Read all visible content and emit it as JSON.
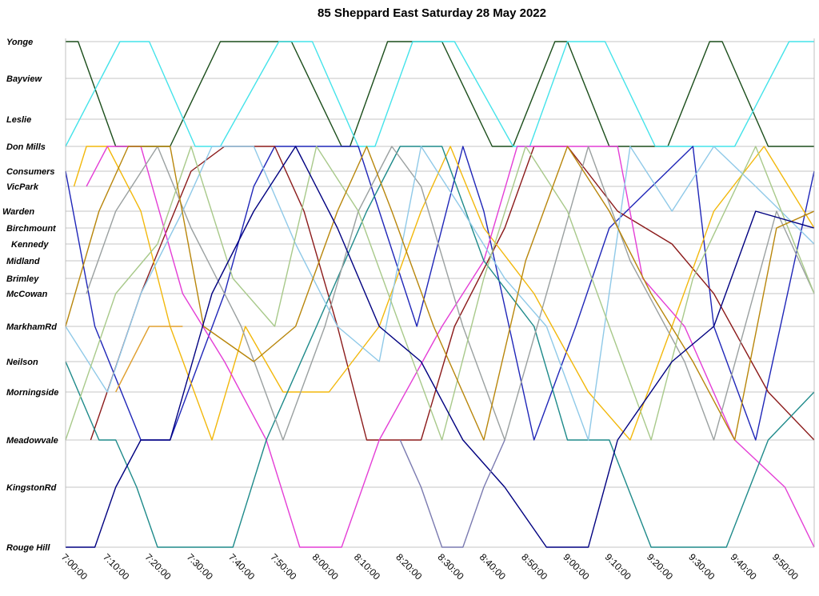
{
  "chart_data": {
    "type": "line",
    "title": "85 Sheppard East Saturday 28 May 2022",
    "xlabel": "",
    "ylabel": "",
    "x_ticks": [
      "7:00:00",
      "7:10:00",
      "7:20:00",
      "7:30:00",
      "7:40:00",
      "7:50:00",
      "8:00:00",
      "8:10:00",
      "8:20:00",
      "8:30:00",
      "8:40:00",
      "8:50:00",
      "9:00:00",
      "9:10:00",
      "9:20:00",
      "9:30:00",
      "9:40:00",
      "9:50:00"
    ],
    "xlim": [
      "7:00:00",
      "9:59:00"
    ],
    "stops": [
      "Yonge",
      "Bayview",
      "Leslie",
      "Don Mills",
      "Consumers",
      "VicPark",
      "Warden",
      "Birchmount",
      "Kennedy",
      "Midland",
      "Brimley",
      "McCowan",
      "MarkhamRd",
      "Neilson",
      "Morningside",
      "Meadowvale",
      "KingstonRd",
      "Rouge Hill"
    ],
    "grid": true,
    "legend": "none",
    "series": [
      {
        "color": "#1a4d1a",
        "points": [
          [
            "7:00",
            "Yonge"
          ],
          [
            "7:03",
            "Yonge"
          ],
          [
            "7:12",
            "Don Mills"
          ],
          [
            "7:25",
            "Don Mills"
          ],
          [
            "7:37",
            "Yonge"
          ],
          [
            "7:54",
            "Yonge"
          ],
          [
            "8:06",
            "Don Mills"
          ],
          [
            "8:08",
            "Don Mills"
          ],
          [
            "8:17",
            "Yonge"
          ],
          [
            "8:30",
            "Yonge"
          ],
          [
            "8:42",
            "Don Mills"
          ],
          [
            "8:47",
            "Don Mills"
          ],
          [
            "8:57",
            "Yonge"
          ],
          [
            "9:00",
            "Yonge"
          ],
          [
            "9:10",
            "Don Mills"
          ],
          [
            "9:24",
            "Don Mills"
          ],
          [
            "9:34",
            "Yonge"
          ],
          [
            "9:37",
            "Yonge"
          ],
          [
            "9:48",
            "Don Mills"
          ],
          [
            "9:59",
            "Don Mills"
          ]
        ]
      },
      {
        "color": "#44e3ea",
        "points": [
          [
            "7:00",
            "Don Mills"
          ],
          [
            "7:13",
            "Yonge"
          ],
          [
            "7:20",
            "Yonge"
          ],
          [
            "7:31",
            "Don Mills"
          ],
          [
            "7:37",
            "Don Mills"
          ],
          [
            "7:51",
            "Yonge"
          ],
          [
            "7:59",
            "Yonge"
          ],
          [
            "8:10",
            "Don Mills"
          ],
          [
            "8:14",
            "Don Mills"
          ],
          [
            "8:23",
            "Yonge"
          ],
          [
            "8:33",
            "Yonge"
          ],
          [
            "8:47",
            "Don Mills"
          ],
          [
            "8:51",
            "Don Mills"
          ],
          [
            "9:00",
            "Yonge"
          ],
          [
            "9:09",
            "Yonge"
          ],
          [
            "9:21",
            "Don Mills"
          ],
          [
            "9:40",
            "Don Mills"
          ],
          [
            "9:53",
            "Yonge"
          ],
          [
            "9:59",
            "Yonge"
          ]
        ]
      },
      {
        "color": "#1f26b8",
        "points": [
          [
            "7:00",
            "Consumers"
          ],
          [
            "7:07",
            "MarkhamRd"
          ],
          [
            "7:18",
            "Meadowvale"
          ],
          [
            "7:25",
            "Meadowvale"
          ],
          [
            "7:38",
            "McCowan"
          ],
          [
            "7:45",
            "VicPark"
          ],
          [
            "7:50",
            "Don Mills"
          ],
          [
            "8:10",
            "Don Mills"
          ],
          [
            "8:15",
            "Warden"
          ],
          [
            "8:24",
            "MarkhamRd"
          ],
          [
            "8:35",
            "Don Mills"
          ],
          [
            "8:40",
            "Warden"
          ],
          [
            "8:52",
            "Meadowvale"
          ],
          [
            "9:02",
            "MarkhamRd"
          ],
          [
            "9:10",
            "Birchmount"
          ],
          [
            "9:30",
            "Don Mills"
          ],
          [
            "9:35",
            "MarkhamRd"
          ],
          [
            "9:45",
            "Meadowvale"
          ],
          [
            "9:59",
            "Consumers"
          ]
        ]
      },
      {
        "color": "#8b1a1a",
        "points": [
          [
            "7:06",
            "Meadowvale"
          ],
          [
            "7:18",
            "McCowan"
          ],
          [
            "7:30",
            "Consumers"
          ],
          [
            "7:38",
            "Don Mills"
          ],
          [
            "7:50",
            "Don Mills"
          ],
          [
            "7:57",
            "Warden"
          ],
          [
            "8:05",
            "MarkhamRd"
          ],
          [
            "8:12",
            "Meadowvale"
          ],
          [
            "8:25",
            "Meadowvale"
          ],
          [
            "8:33",
            "MarkhamRd"
          ],
          [
            "8:45",
            "Birchmount"
          ],
          [
            "8:52",
            "Don Mills"
          ],
          [
            "9:00",
            "Don Mills"
          ],
          [
            "9:12",
            "Warden"
          ],
          [
            "9:25",
            "Kennedy"
          ],
          [
            "9:35",
            "McCowan"
          ],
          [
            "9:48",
            "Morningside"
          ],
          [
            "9:59",
            "Meadowvale"
          ]
        ]
      },
      {
        "color": "#f2b80c",
        "points": [
          [
            "7:02",
            "VicPark"
          ],
          [
            "7:05",
            "Don Mills"
          ],
          [
            "7:10",
            "Don Mills"
          ],
          [
            "7:18",
            "Warden"
          ],
          [
            "7:25",
            "MarkhamRd"
          ],
          [
            "7:35",
            "Meadowvale"
          ],
          [
            "7:43",
            "MarkhamRd"
          ],
          [
            "7:52",
            "Morningside"
          ],
          [
            "8:03",
            "Morningside"
          ],
          [
            "8:15",
            "MarkhamRd"
          ],
          [
            "8:25",
            "Warden"
          ],
          [
            "8:32",
            "Don Mills"
          ],
          [
            "8:40",
            "Birchmount"
          ],
          [
            "8:52",
            "McCowan"
          ],
          [
            "9:05",
            "Morningside"
          ],
          [
            "9:15",
            "Meadowvale"
          ],
          [
            "9:25",
            "MarkhamRd"
          ],
          [
            "9:35",
            "Warden"
          ],
          [
            "9:47",
            "Don Mills"
          ],
          [
            "9:59",
            "Birchmount"
          ]
        ]
      },
      {
        "color": "#e43ed6",
        "points": [
          [
            "7:05",
            "VicPark"
          ],
          [
            "7:10",
            "Don Mills"
          ],
          [
            "7:18",
            "Don Mills"
          ],
          [
            "7:28",
            "McCowan"
          ],
          [
            "7:38",
            "Neilson"
          ],
          [
            "7:48",
            "Meadowvale"
          ],
          [
            "7:56",
            "Rouge Hill"
          ],
          [
            "8:06",
            "Rouge Hill"
          ],
          [
            "8:15",
            "Meadowvale"
          ],
          [
            "8:30",
            "MarkhamRd"
          ],
          [
            "8:40",
            "Midland"
          ],
          [
            "8:48",
            "Don Mills"
          ],
          [
            "9:12",
            "Don Mills"
          ],
          [
            "9:18",
            "Brimley"
          ],
          [
            "9:28",
            "MarkhamRd"
          ],
          [
            "9:40",
            "Meadowvale"
          ],
          [
            "9:52",
            "KingstonRd"
          ],
          [
            "9:59",
            "Rouge Hill"
          ]
        ]
      },
      {
        "color": "#1e8a8a",
        "points": [
          [
            "7:00",
            "Neilson"
          ],
          [
            "7:08",
            "Meadowvale"
          ],
          [
            "7:12",
            "Meadowvale"
          ],
          [
            "7:17",
            "KingstonRd"
          ],
          [
            "7:22",
            "Rouge Hill"
          ],
          [
            "7:40",
            "Rouge Hill"
          ],
          [
            "7:48",
            "Meadowvale"
          ],
          [
            "8:00",
            "MarkhamRd"
          ],
          [
            "8:12",
            "Warden"
          ],
          [
            "8:20",
            "Don Mills"
          ],
          [
            "8:30",
            "Don Mills"
          ],
          [
            "8:40",
            "Midland"
          ],
          [
            "8:52",
            "MarkhamRd"
          ],
          [
            "9:00",
            "Meadowvale"
          ],
          [
            "9:10",
            "Meadowvale"
          ],
          [
            "9:20",
            "Rouge Hill"
          ],
          [
            "9:38",
            "Rouge Hill"
          ],
          [
            "9:48",
            "Meadowvale"
          ],
          [
            "9:59",
            "Morningside"
          ]
        ]
      },
      {
        "color": "#9aa0a0",
        "points": [
          [
            "7:05",
            "McCowan"
          ],
          [
            "7:12",
            "Warden"
          ],
          [
            "7:22",
            "Don Mills"
          ],
          [
            "7:30",
            "Birchmount"
          ],
          [
            "7:42",
            "MarkhamRd"
          ],
          [
            "7:52",
            "Meadowvale"
          ],
          [
            "8:02",
            "MarkhamRd"
          ],
          [
            "8:10",
            "Warden"
          ],
          [
            "8:18",
            "Don Mills"
          ],
          [
            "8:25",
            "VicPark"
          ],
          [
            "8:35",
            "MarkhamRd"
          ],
          [
            "8:45",
            "Meadowvale"
          ],
          [
            "8:55",
            "McCowan"
          ],
          [
            "9:05",
            "Don Mills"
          ],
          [
            "9:15",
            "Midland"
          ],
          [
            "9:28",
            "Neilson"
          ],
          [
            "9:35",
            "Meadowvale"
          ],
          [
            "9:50",
            "Warden"
          ],
          [
            "9:59",
            "McCowan"
          ]
        ]
      },
      {
        "color": "#8fc9e8",
        "points": [
          [
            "7:00",
            "MarkhamRd"
          ],
          [
            "7:10",
            "Morningside"
          ],
          [
            "7:18",
            "McCowan"
          ],
          [
            "7:28",
            "Warden"
          ],
          [
            "7:35",
            "Don Mills"
          ],
          [
            "7:45",
            "Don Mills"
          ],
          [
            "7:55",
            "Kennedy"
          ],
          [
            "8:05",
            "MarkhamRd"
          ],
          [
            "8:15",
            "Neilson"
          ],
          [
            "8:25",
            "Don Mills"
          ],
          [
            "8:35",
            "Warden"
          ],
          [
            "8:45",
            "Brimley"
          ],
          [
            "8:55",
            "MarkhamRd"
          ],
          [
            "9:05",
            "Meadowvale"
          ],
          [
            "9:15",
            "Don Mills"
          ],
          [
            "9:25",
            "Warden"
          ],
          [
            "9:35",
            "Don Mills"
          ],
          [
            "9:45",
            "VicPark"
          ],
          [
            "9:59",
            "Kennedy"
          ]
        ]
      },
      {
        "color": "#a8c98a",
        "points": [
          [
            "7:00",
            "Meadowvale"
          ],
          [
            "7:12",
            "McCowan"
          ],
          [
            "7:22",
            "Kennedy"
          ],
          [
            "7:30",
            "Don Mills"
          ],
          [
            "7:40",
            "Brimley"
          ],
          [
            "7:50",
            "MarkhamRd"
          ],
          [
            "8:00",
            "Don Mills"
          ],
          [
            "8:10",
            "Warden"
          ],
          [
            "8:20",
            "MarkhamRd"
          ],
          [
            "8:30",
            "Meadowvale"
          ],
          [
            "8:40",
            "Brimley"
          ],
          [
            "8:50",
            "Don Mills"
          ],
          [
            "9:00",
            "Warden"
          ],
          [
            "9:10",
            "MarkhamRd"
          ],
          [
            "9:20",
            "Meadowvale"
          ],
          [
            "9:30",
            "Brimley"
          ],
          [
            "9:45",
            "Don Mills"
          ],
          [
            "9:59",
            "McCowan"
          ]
        ]
      },
      {
        "color": "#b8860b",
        "points": [
          [
            "7:00",
            "MarkhamRd"
          ],
          [
            "7:08",
            "Warden"
          ],
          [
            "7:15",
            "Don Mills"
          ],
          [
            "7:25",
            "Don Mills"
          ],
          [
            "7:33",
            "MarkhamRd"
          ],
          [
            "7:45",
            "Neilson"
          ],
          [
            "7:55",
            "MarkhamRd"
          ],
          [
            "8:05",
            "Warden"
          ],
          [
            "8:12",
            "Don Mills"
          ],
          [
            "8:18",
            "Warden"
          ],
          [
            "8:28",
            "MarkhamRd"
          ],
          [
            "8:40",
            "Meadowvale"
          ],
          [
            "8:50",
            "Midland"
          ],
          [
            "9:00",
            "Don Mills"
          ],
          [
            "9:10",
            "Warden"
          ],
          [
            "9:20",
            "McCowan"
          ],
          [
            "9:30",
            "Neilson"
          ],
          [
            "9:40",
            "Meadowvale"
          ],
          [
            "9:50",
            "Birchmount"
          ],
          [
            "9:59",
            "Warden"
          ]
        ]
      },
      {
        "color": "#000080",
        "points": [
          [
            "7:00",
            "Rouge Hill"
          ],
          [
            "7:07",
            "Rouge Hill"
          ],
          [
            "7:12",
            "KingstonRd"
          ],
          [
            "7:18",
            "Meadowvale"
          ],
          [
            "7:25",
            "Meadowvale"
          ],
          [
            "7:35",
            "McCowan"
          ],
          [
            "7:45",
            "Warden"
          ],
          [
            "7:55",
            "Don Mills"
          ],
          [
            "8:05",
            "Birchmount"
          ],
          [
            "8:15",
            "MarkhamRd"
          ],
          [
            "8:25",
            "Neilson"
          ],
          [
            "8:35",
            "Meadowvale"
          ],
          [
            "8:45",
            "KingstonRd"
          ],
          [
            "8:55",
            "Rouge Hill"
          ],
          [
            "9:05",
            "Rouge Hill"
          ],
          [
            "9:12",
            "Meadowvale"
          ],
          [
            "9:25",
            "Neilson"
          ],
          [
            "9:35",
            "MarkhamRd"
          ],
          [
            "9:45",
            "Warden"
          ],
          [
            "9:59",
            "Birchmount"
          ]
        ]
      },
      {
        "color": "#7a7ab0",
        "points": [
          [
            "8:20",
            "Meadowvale"
          ],
          [
            "8:25",
            "KingstonRd"
          ],
          [
            "8:30",
            "Rouge Hill"
          ],
          [
            "8:35",
            "Rouge Hill"
          ],
          [
            "8:40",
            "KingstonRd"
          ],
          [
            "8:45",
            "Meadowvale"
          ]
        ]
      },
      {
        "color": "#e0a030",
        "points": [
          [
            "7:12",
            "Morningside"
          ],
          [
            "7:20",
            "MarkhamRd"
          ],
          [
            "7:28",
            "MarkhamRd"
          ]
        ]
      }
    ]
  }
}
